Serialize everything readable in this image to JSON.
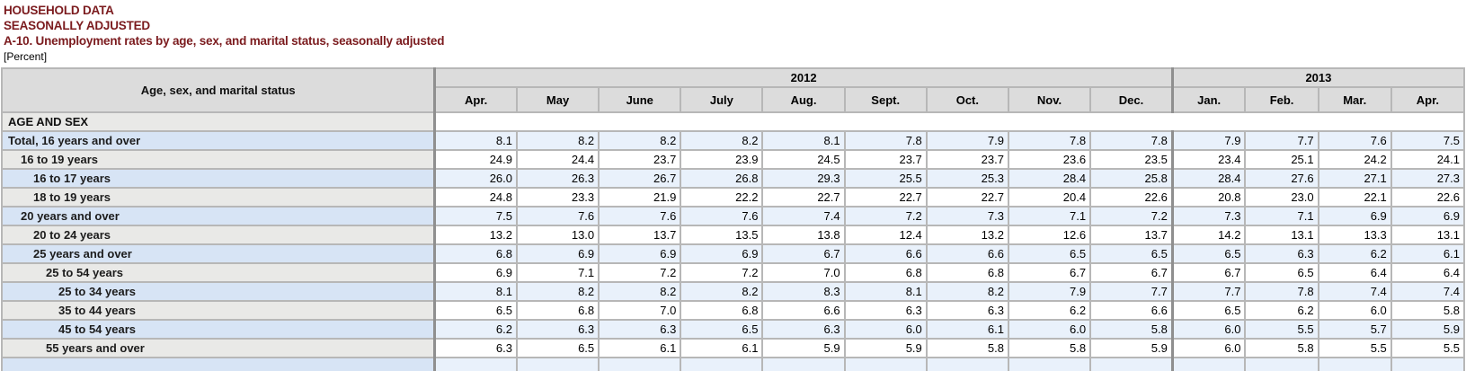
{
  "page": {
    "title_line1": "HOUSEHOLD DATA",
    "title_line2": "SEASONALLY ADJUSTED",
    "table_title": "A-10. Unemployment rates by age, sex, and marital status, seasonally adjusted",
    "unit_note": "[Percent]"
  },
  "colors": {
    "title_maroon": "#7b1b1e",
    "header_gray": "#dcdcdc",
    "label_blue": "#d7e4f5",
    "data_blue": "#e9f1fb",
    "label_gray": "#e9e9e7",
    "grid_border": "#b7b7b7",
    "heavy_border": "#8f8f8f"
  },
  "table": {
    "stub_header": "Age, sex, and marital status",
    "year_groups": [
      {
        "label": "2012",
        "colspan": 9
      },
      {
        "label": "2013",
        "colspan": 4
      }
    ],
    "months": [
      "Apr.",
      "May",
      "June",
      "July",
      "Aug.",
      "Sept.",
      "Oct.",
      "Nov.",
      "Dec.",
      "Jan.",
      "Feb.",
      "Mar.",
      "Apr."
    ],
    "section_header": "AGE AND SEX",
    "rows": [
      {
        "label": "Total, 16 years and over",
        "indent": 0,
        "shade": "blue",
        "values": [
          "8.1",
          "8.2",
          "8.2",
          "8.2",
          "8.1",
          "7.8",
          "7.9",
          "7.8",
          "7.8",
          "7.9",
          "7.7",
          "7.6",
          "7.5"
        ]
      },
      {
        "label": "16 to 19 years",
        "indent": 1,
        "shade": "gray",
        "values": [
          "24.9",
          "24.4",
          "23.7",
          "23.9",
          "24.5",
          "23.7",
          "23.7",
          "23.6",
          "23.5",
          "23.4",
          "25.1",
          "24.2",
          "24.1"
        ]
      },
      {
        "label": "16 to 17 years",
        "indent": 2,
        "shade": "blue",
        "values": [
          "26.0",
          "26.3",
          "26.7",
          "26.8",
          "29.3",
          "25.5",
          "25.3",
          "28.4",
          "25.8",
          "28.4",
          "27.6",
          "27.1",
          "27.3"
        ]
      },
      {
        "label": "18 to 19 years",
        "indent": 2,
        "shade": "gray",
        "values": [
          "24.8",
          "23.3",
          "21.9",
          "22.2",
          "22.7",
          "22.7",
          "22.7",
          "20.4",
          "22.6",
          "20.8",
          "23.0",
          "22.1",
          "22.6"
        ]
      },
      {
        "label": "20 years and over",
        "indent": 1,
        "shade": "blue",
        "values": [
          "7.5",
          "7.6",
          "7.6",
          "7.6",
          "7.4",
          "7.2",
          "7.3",
          "7.1",
          "7.2",
          "7.3",
          "7.1",
          "6.9",
          "6.9"
        ]
      },
      {
        "label": "20 to 24 years",
        "indent": 2,
        "shade": "gray",
        "values": [
          "13.2",
          "13.0",
          "13.7",
          "13.5",
          "13.8",
          "12.4",
          "13.2",
          "12.6",
          "13.7",
          "14.2",
          "13.1",
          "13.3",
          "13.1"
        ]
      },
      {
        "label": "25 years and over",
        "indent": 2,
        "shade": "blue",
        "values": [
          "6.8",
          "6.9",
          "6.9",
          "6.9",
          "6.7",
          "6.6",
          "6.6",
          "6.5",
          "6.5",
          "6.5",
          "6.3",
          "6.2",
          "6.1"
        ]
      },
      {
        "label": "25 to 54 years",
        "indent": 3,
        "shade": "gray",
        "values": [
          "6.9",
          "7.1",
          "7.2",
          "7.2",
          "7.0",
          "6.8",
          "6.8",
          "6.7",
          "6.7",
          "6.7",
          "6.5",
          "6.4",
          "6.4"
        ]
      },
      {
        "label": "25 to 34 years",
        "indent": 4,
        "shade": "blue",
        "values": [
          "8.1",
          "8.2",
          "8.2",
          "8.2",
          "8.3",
          "8.1",
          "8.2",
          "7.9",
          "7.7",
          "7.7",
          "7.8",
          "7.4",
          "7.4"
        ]
      },
      {
        "label": "35 to 44 years",
        "indent": 4,
        "shade": "gray",
        "values": [
          "6.5",
          "6.8",
          "7.0",
          "6.8",
          "6.6",
          "6.3",
          "6.3",
          "6.2",
          "6.6",
          "6.5",
          "6.2",
          "6.0",
          "5.8"
        ]
      },
      {
        "label": "45 to 54 years",
        "indent": 4,
        "shade": "blue",
        "values": [
          "6.2",
          "6.3",
          "6.3",
          "6.5",
          "6.3",
          "6.0",
          "6.1",
          "6.0",
          "5.8",
          "6.0",
          "5.5",
          "5.7",
          "5.9"
        ]
      },
      {
        "label": "55 years and over",
        "indent": 3,
        "shade": "gray",
        "values": [
          "6.3",
          "6.5",
          "6.1",
          "6.1",
          "5.9",
          "5.9",
          "5.8",
          "5.8",
          "5.9",
          "6.0",
          "5.8",
          "5.5",
          "5.5"
        ]
      }
    ],
    "partial_next_row_visible": true
  }
}
